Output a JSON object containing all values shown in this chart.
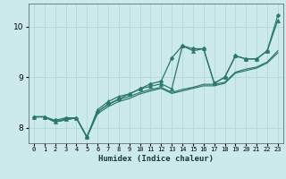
{
  "xlabel": "Humidex (Indice chaleur)",
  "background_color": "#cce9ec",
  "grid_color": "#b8d8dc",
  "line_color": "#2a7868",
  "xlim": [
    -0.5,
    23.5
  ],
  "ylim": [
    7.7,
    10.45
  ],
  "yticks": [
    8,
    9,
    10
  ],
  "xticks": [
    0,
    1,
    2,
    3,
    4,
    5,
    6,
    7,
    8,
    9,
    10,
    11,
    12,
    13,
    14,
    15,
    16,
    17,
    18,
    19,
    20,
    21,
    22,
    23
  ],
  "s1_x": [
    0,
    1,
    2,
    3,
    4,
    5,
    6,
    7,
    8,
    9,
    10,
    11,
    12,
    13,
    14,
    15,
    16,
    17,
    18,
    19,
    20,
    21,
    22,
    23
  ],
  "s1_y": [
    8.22,
    8.22,
    8.15,
    8.2,
    8.2,
    7.82,
    8.32,
    8.47,
    8.57,
    8.67,
    8.77,
    8.87,
    8.92,
    9.38,
    9.62,
    9.56,
    9.56,
    8.88,
    9.0,
    9.42,
    9.36,
    9.36,
    9.52,
    10.22
  ],
  "s2_x": [
    0,
    1,
    2,
    3,
    4,
    5,
    6,
    7,
    8,
    9,
    10,
    11,
    12,
    13,
    14,
    15,
    16,
    17,
    18,
    19,
    20,
    21,
    22,
    23
  ],
  "s2_y": [
    8.22,
    8.22,
    8.12,
    8.18,
    8.2,
    7.82,
    8.36,
    8.52,
    8.62,
    8.67,
    8.77,
    8.82,
    8.87,
    8.77,
    9.62,
    9.52,
    9.56,
    8.88,
    9.0,
    9.42,
    9.36,
    9.36,
    9.52,
    10.12
  ],
  "s3_x": [
    0,
    1,
    2,
    3,
    4,
    5,
    6,
    7,
    8,
    9,
    10,
    11,
    12,
    13,
    14,
    15,
    16,
    17,
    18,
    19,
    20,
    21,
    22,
    23
  ],
  "s3_y": [
    8.22,
    8.22,
    8.12,
    8.16,
    8.2,
    7.82,
    8.28,
    8.42,
    8.52,
    8.58,
    8.67,
    8.73,
    8.78,
    8.68,
    8.73,
    8.78,
    8.83,
    8.83,
    8.88,
    9.08,
    9.13,
    9.18,
    9.28,
    9.48
  ],
  "s4_x": [
    0,
    1,
    2,
    3,
    4,
    5,
    6,
    7,
    8,
    9,
    10,
    11,
    12,
    13,
    14,
    15,
    16,
    17,
    18,
    19,
    20,
    21,
    22,
    23
  ],
  "s4_y": [
    8.22,
    8.22,
    8.12,
    8.16,
    8.2,
    7.82,
    8.32,
    8.46,
    8.56,
    8.62,
    8.7,
    8.76,
    8.8,
    8.7,
    8.76,
    8.8,
    8.86,
    8.86,
    8.9,
    9.1,
    9.16,
    9.2,
    9.3,
    9.52
  ]
}
